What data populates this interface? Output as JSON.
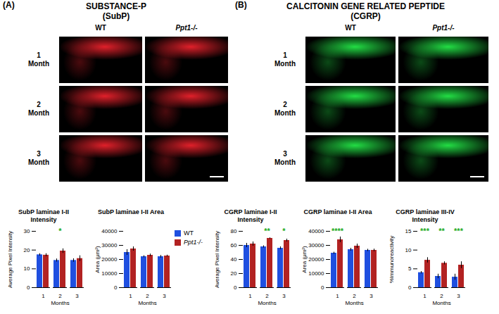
{
  "panels": [
    {
      "label": "(A)",
      "title": "SUBSTANCE-P",
      "subtitle": "(SubP)",
      "columns": [
        "WT",
        "Ppt1-/-"
      ],
      "rows": [
        "1 Month",
        "2 Month",
        "3 Month"
      ]
    },
    {
      "label": "(B)",
      "title": "CALCITONIN GENE RELATED PEPTIDE",
      "subtitle": "(CGRP)",
      "columns": [
        "WT",
        "Ppt1-/-"
      ],
      "rows": [
        "1 Month",
        "2 Month",
        "3 Month"
      ]
    }
  ],
  "chart_data": [
    {
      "type": "bar",
      "title": "SubP laminae I-II Intensity",
      "x_label": "Months",
      "y_label": "Average Pixel Intensity",
      "categories": [
        "1",
        "2",
        "3"
      ],
      "series": [
        {
          "name": "WT",
          "color": "#1f4fe0",
          "values": [
            17.5,
            14.5,
            14.5
          ],
          "errors": [
            0.6,
            0.8,
            0.9
          ]
        },
        {
          "name": "Ppt1-/-",
          "color": "#b22222",
          "values": [
            17.3,
            19.5,
            15.5
          ],
          "errors": [
            0.8,
            1.2,
            1.5
          ]
        }
      ],
      "ylim": [
        0,
        30
      ],
      "yticks": [
        0,
        10,
        20,
        30
      ],
      "annotations": [
        {
          "category": "2",
          "text": "*",
          "color": "#22aa22"
        }
      ]
    },
    {
      "type": "bar",
      "title": "SubP laminae I-II Area",
      "x_label": "Months",
      "y_label": "Area (μm²)",
      "categories": [
        "1",
        "2",
        "3"
      ],
      "series": [
        {
          "name": "WT",
          "color": "#1f4fe0",
          "values": [
            25000,
            22000,
            22000
          ],
          "errors": [
            2000,
            700,
            900
          ]
        },
        {
          "name": "Ppt1-/-",
          "color": "#b22222",
          "values": [
            27500,
            23000,
            22500
          ],
          "errors": [
            1500,
            900,
            600
          ]
        }
      ],
      "ylim": [
        0,
        40000
      ],
      "yticks": [
        0,
        10000,
        20000,
        30000,
        40000
      ],
      "legend": "right"
    },
    {
      "type": "bar",
      "title": "CGRP laminae I-II Intensity",
      "x_label": "Months",
      "y_label": "Average Pixel Intensity",
      "categories": [
        "1",
        "2",
        "3"
      ],
      "series": [
        {
          "name": "WT",
          "color": "#1f4fe0",
          "values": [
            60,
            58,
            56
          ],
          "errors": [
            3,
            1.5,
            2
          ]
        },
        {
          "name": "Ppt1-/-",
          "color": "#b22222",
          "values": [
            62,
            70,
            67
          ],
          "errors": [
            3,
            0.8,
            2
          ]
        }
      ],
      "ylim": [
        0,
        80
      ],
      "yticks": [
        0,
        20,
        40,
        60,
        80
      ],
      "annotations": [
        {
          "category": "2",
          "text": "**",
          "color": "#22aa22"
        },
        {
          "category": "3",
          "text": "*",
          "color": "#22aa22"
        }
      ]
    },
    {
      "type": "bar",
      "title": "CGRP laminae I-II Area",
      "x_label": "Months",
      "y_label": "Area (μm²)",
      "categories": [
        "1",
        "2",
        "3"
      ],
      "series": [
        {
          "name": "WT",
          "color": "#1f4fe0",
          "values": [
            24500,
            27000,
            26500
          ],
          "errors": [
            700,
            1000,
            800
          ]
        },
        {
          "name": "Ppt1-/-",
          "color": "#b22222",
          "values": [
            34000,
            29500,
            26500
          ],
          "errors": [
            2000,
            1500,
            900
          ]
        }
      ],
      "ylim": [
        0,
        40000
      ],
      "yticks": [
        0,
        10000,
        20000,
        30000,
        40000
      ],
      "annotations": [
        {
          "category": "1",
          "text": "****",
          "color": "#22aa22"
        }
      ]
    },
    {
      "type": "bar",
      "title": "CGRP laminae III-IV Intensity",
      "x_label": "Months",
      "y_label": "%Immunoreactivity",
      "categories": [
        "1",
        "2",
        "3"
      ],
      "series": [
        {
          "name": "WT",
          "color": "#1f4fe0",
          "values": [
            4,
            3,
            2.8
          ],
          "errors": [
            0.3,
            0.6,
            0.8
          ]
        },
        {
          "name": "Ppt1-/-",
          "color": "#b22222",
          "values": [
            7.3,
            6.5,
            6
          ],
          "errors": [
            0.7,
            0.4,
            0.9
          ]
        }
      ],
      "ylim": [
        0,
        15
      ],
      "yticks": [
        0,
        5,
        10,
        15
      ],
      "annotations": [
        {
          "category": "1",
          "text": "***",
          "color": "#22aa22"
        },
        {
          "category": "2",
          "text": "**",
          "color": "#22aa22"
        },
        {
          "category": "3",
          "text": "***",
          "color": "#22aa22"
        }
      ]
    }
  ]
}
